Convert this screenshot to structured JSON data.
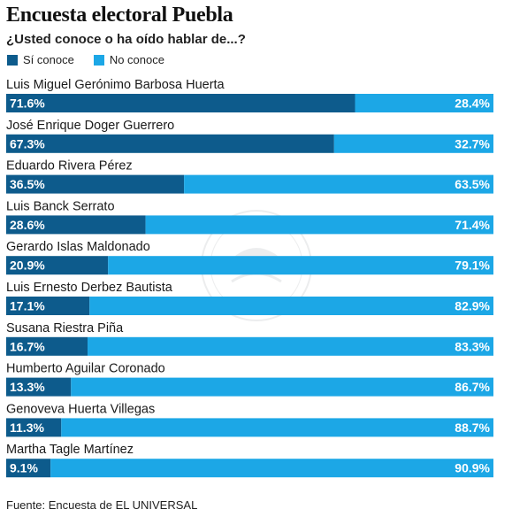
{
  "chart_data": {
    "type": "bar",
    "title": "Encuesta electoral Puebla",
    "subtitle": "¿Usted conoce o ha oído hablar de...?",
    "legend": [
      {
        "name": "Sí conoce",
        "color": "#0d5b8c"
      },
      {
        "name": "No conoce",
        "color": "#1ca7e6"
      }
    ],
    "legend_placement": "top-left",
    "categories": [
      "Luis Miguel Gerónimo Barbosa Huerta",
      "José Enrique Doger Guerrero",
      "Eduardo Rivera Pérez",
      "Luis Banck Serrato",
      "Gerardo Islas Maldonado",
      "Luis Ernesto Derbez Bautista",
      "Susana Riestra Piña",
      "Humberto Aguilar Coronado",
      "Genoveva Huerta Villegas",
      "Martha Tagle Martínez"
    ],
    "series": [
      {
        "name": "Sí conoce",
        "values": [
          71.6,
          67.3,
          36.5,
          28.6,
          20.9,
          17.1,
          16.7,
          13.3,
          11.3,
          9.1
        ],
        "labels": [
          "71.6%",
          "67.3%",
          "36.5%",
          "28.6%",
          "20.9%",
          "17.1%",
          "16.7%",
          "13.3%",
          "11.3%",
          "9.1%"
        ]
      },
      {
        "name": "No conoce",
        "values": [
          28.4,
          32.7,
          63.5,
          71.4,
          79.1,
          82.9,
          83.3,
          86.7,
          88.7,
          90.9
        ],
        "labels": [
          "28.4%",
          "32.7%",
          "63.5%",
          "71.4%",
          "79.1%",
          "82.9%",
          "83.3%",
          "86.7%",
          "88.7%",
          "90.9%"
        ]
      }
    ],
    "stacked": true,
    "orientation": "horizontal",
    "xlim": [
      0,
      100
    ],
    "grid": false,
    "source": "Fuente: Encuesta de EL UNIVERSAL"
  }
}
